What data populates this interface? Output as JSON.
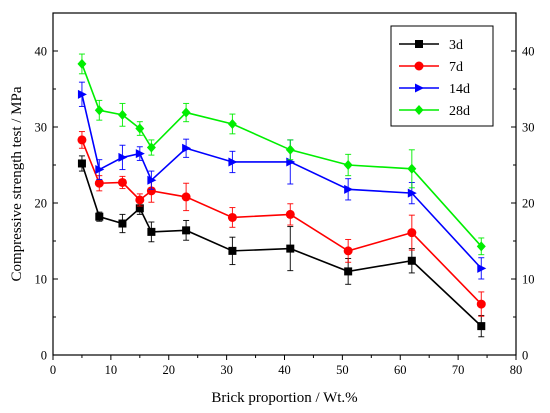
{
  "chart_data": {
    "type": "line",
    "xlabel": "Brick proportion / Wt.%",
    "ylabel": "Compressive strength test / MPa",
    "xlim": [
      0,
      80
    ],
    "ylim": [
      0,
      45
    ],
    "xticks": [
      0,
      10,
      20,
      30,
      40,
      50,
      60,
      70,
      80
    ],
    "yticks": [
      0,
      10,
      20,
      30,
      40
    ],
    "grid": false,
    "legend_position": "top-right",
    "x": [
      5,
      8,
      12,
      15,
      17,
      23,
      31,
      41,
      51,
      62,
      74
    ],
    "series": [
      {
        "name": "3d",
        "color": "#000000",
        "marker": "square",
        "values": [
          25.2,
          18.2,
          17.3,
          19.3,
          16.2,
          16.4,
          13.7,
          14.0,
          11.0,
          12.4,
          3.8
        ],
        "errors": [
          1.0,
          0.6,
          1.2,
          0.8,
          1.3,
          1.3,
          1.8,
          2.9,
          1.7,
          1.6,
          1.4
        ]
      },
      {
        "name": "7d",
        "color": "#ff0000",
        "marker": "circle",
        "values": [
          28.3,
          22.6,
          22.7,
          20.4,
          21.6,
          20.8,
          18.1,
          18.5,
          13.7,
          16.1,
          6.7
        ],
        "errors": [
          1.1,
          1.0,
          0.8,
          0.8,
          1.5,
          1.8,
          1.3,
          1.4,
          1.5,
          2.3,
          1.6
        ]
      },
      {
        "name": "14d",
        "color": "#0000ff",
        "marker": "triangle-right",
        "values": [
          34.3,
          24.4,
          26.0,
          26.5,
          23.0,
          27.2,
          25.4,
          25.4,
          21.8,
          21.3,
          11.4
        ],
        "errors": [
          1.6,
          1.3,
          1.6,
          0.9,
          1.2,
          1.2,
          1.4,
          2.9,
          1.4,
          1.4,
          1.4
        ]
      },
      {
        "name": "28d",
        "color": "#00ee00",
        "marker": "diamond",
        "values": [
          38.3,
          32.2,
          31.6,
          29.8,
          27.3,
          31.9,
          30.4,
          27.0,
          25.0,
          24.5,
          14.3
        ],
        "errors": [
          1.3,
          1.3,
          1.5,
          0.9,
          1.0,
          1.2,
          1.3,
          1.3,
          1.4,
          2.5,
          1.1
        ]
      }
    ]
  }
}
